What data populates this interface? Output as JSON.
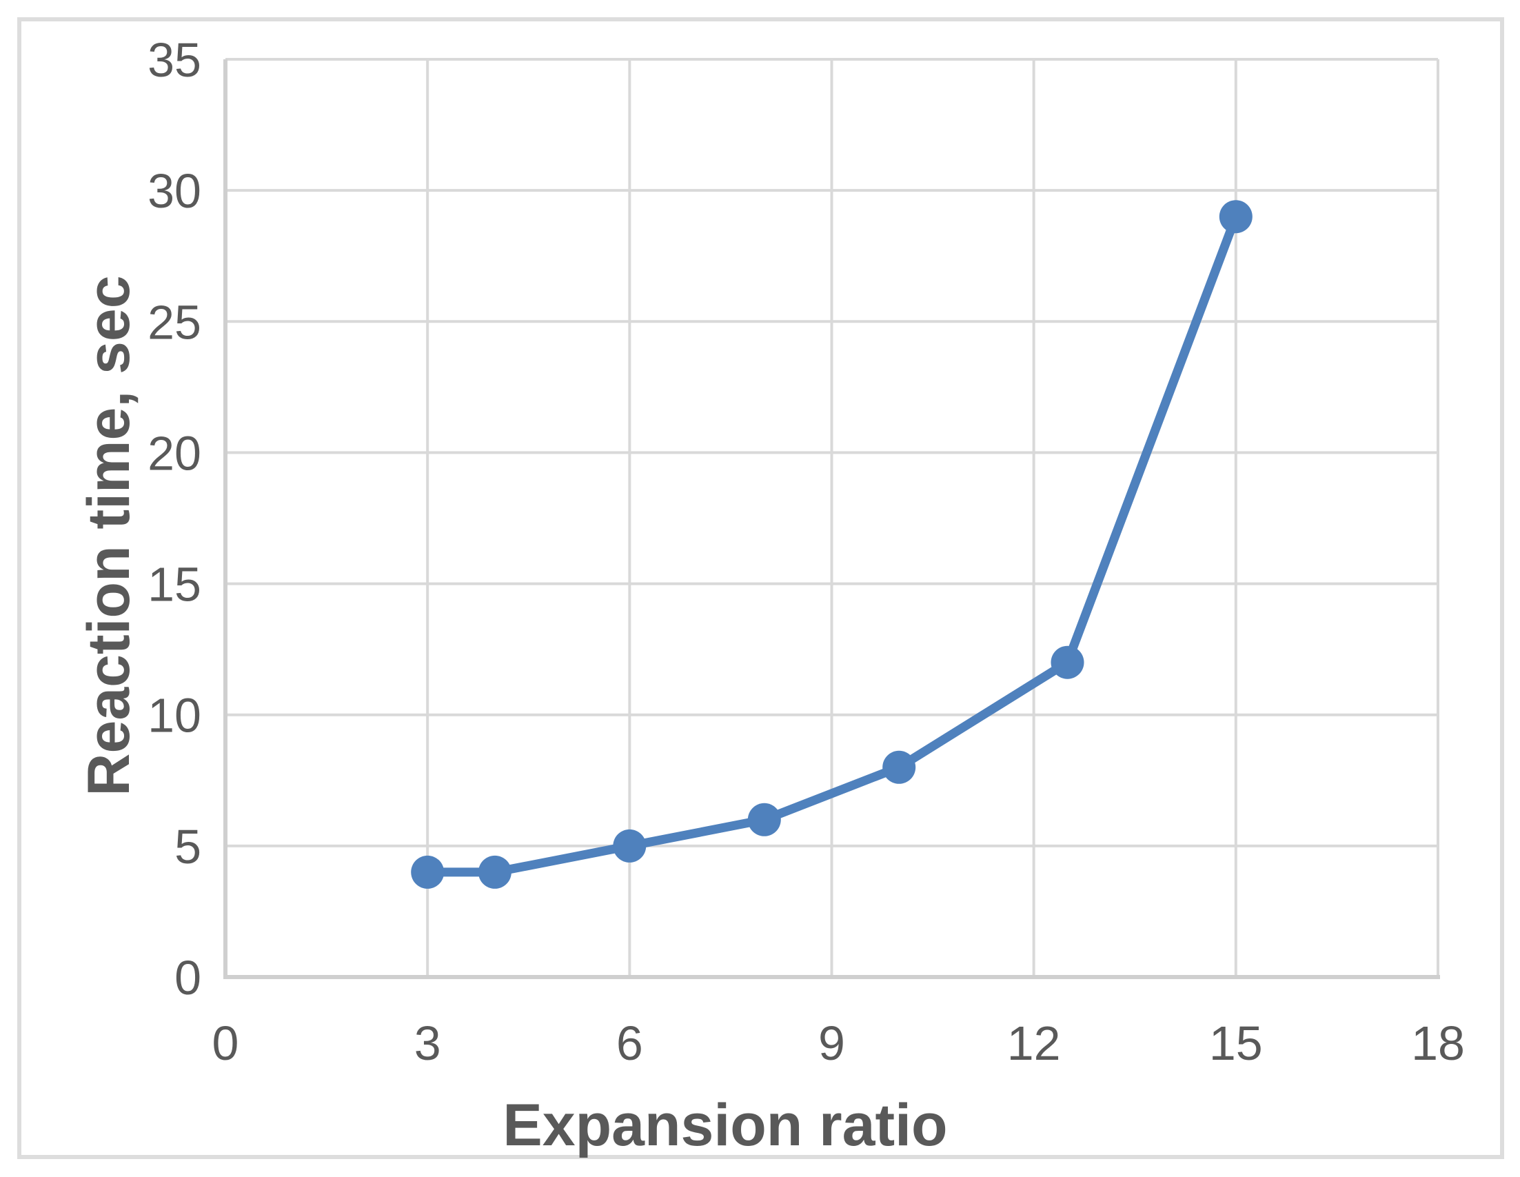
{
  "chart_data": {
    "type": "line",
    "title": "",
    "xlabel": "Expansion ratio",
    "ylabel": "Reaction time, sec",
    "points": [
      {
        "x": 3,
        "y": 4
      },
      {
        "x": 4,
        "y": 4
      },
      {
        "x": 6,
        "y": 5
      },
      {
        "x": 8,
        "y": 6
      },
      {
        "x": 10,
        "y": 8
      },
      {
        "x": 12.5,
        "y": 12
      },
      {
        "x": 15,
        "y": 29
      }
    ],
    "xlim": [
      0,
      18
    ],
    "ylim": [
      0,
      35
    ],
    "xticks": [
      0,
      3,
      6,
      9,
      12,
      15,
      18
    ],
    "yticks": [
      0,
      5,
      10,
      15,
      20,
      25,
      30,
      35
    ],
    "grid": true,
    "legend": "none",
    "marker": "circle",
    "colors": {
      "series": "#4F81BD",
      "labels": "#595959",
      "gridline": "#D9D9D9",
      "axis_line": "#CFCFCF",
      "frame_border": "#DDDDDD",
      "background": "#FFFFFF"
    }
  }
}
